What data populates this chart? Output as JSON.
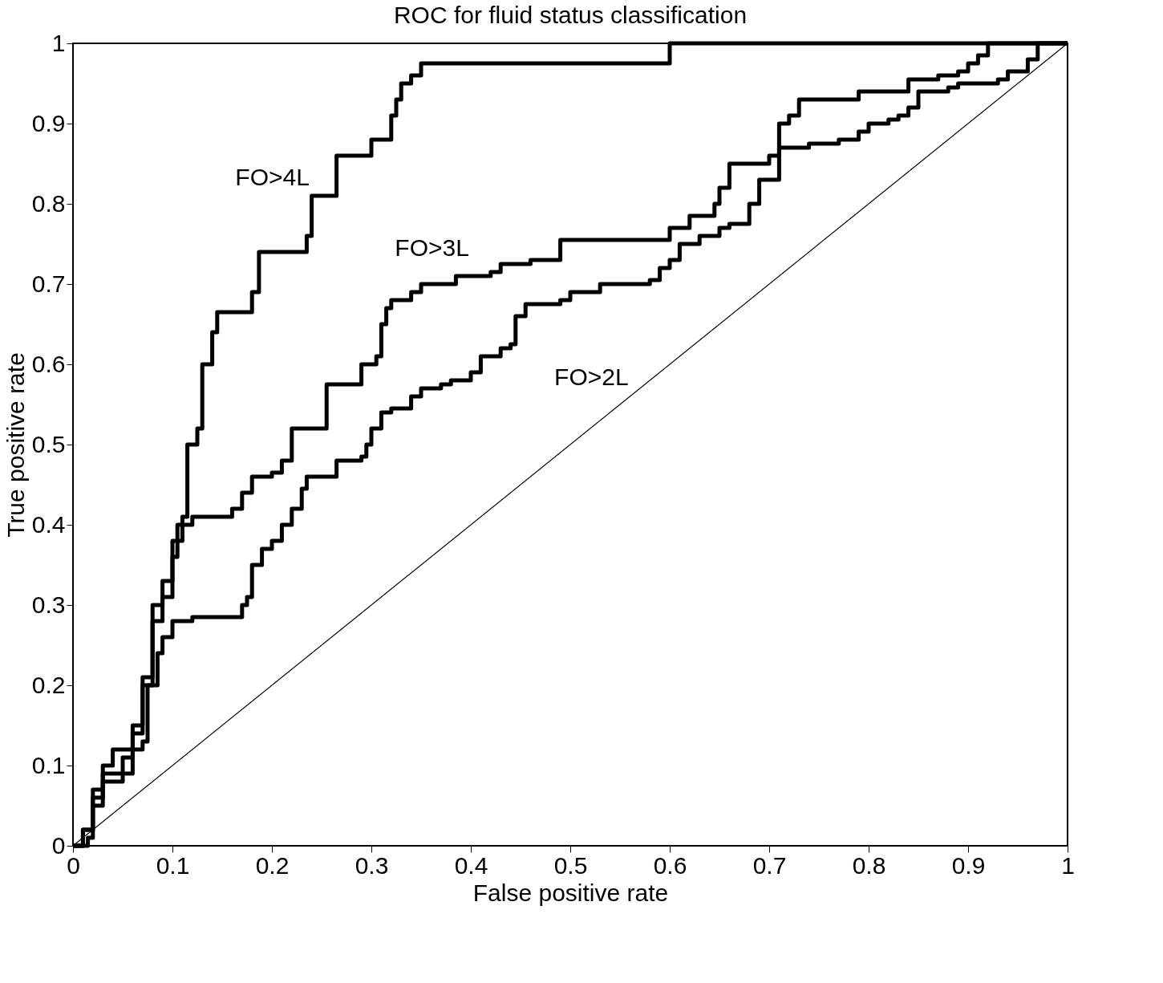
{
  "chart_data": {
    "type": "step",
    "title": "ROC for fluid status classification",
    "xlabel": "False positive rate",
    "ylabel": "True positive rate",
    "xlim": [
      0,
      1
    ],
    "ylim": [
      0,
      1
    ],
    "xticks": [
      0,
      0.1,
      0.2,
      0.3,
      0.4,
      0.5,
      0.6,
      0.7,
      0.8,
      0.9,
      1
    ],
    "yticks": [
      0,
      0.1,
      0.2,
      0.3,
      0.4,
      0.5,
      0.6,
      0.7,
      0.8,
      0.9,
      1
    ],
    "grid": false,
    "legend": false,
    "series": [
      {
        "name": "FO>4L",
        "color": "#000000",
        "x": [
          0,
          0.01,
          0.02,
          0.03,
          0.04,
          0.06,
          0.07,
          0.08,
          0.09,
          0.1,
          0.105,
          0.11,
          0.115,
          0.125,
          0.13,
          0.14,
          0.145,
          0.18,
          0.187,
          0.235,
          0.24,
          0.265,
          0.3,
          0.32,
          0.325,
          0.33,
          0.34,
          0.35,
          0.6,
          1
        ],
        "values": [
          0,
          0.02,
          0.07,
          0.1,
          0.12,
          0.14,
          0.2,
          0.28,
          0.31,
          0.36,
          0.4,
          0.41,
          0.5,
          0.52,
          0.6,
          0.64,
          0.665,
          0.69,
          0.74,
          0.76,
          0.81,
          0.86,
          0.88,
          0.91,
          0.93,
          0.95,
          0.96,
          0.975,
          1,
          1
        ]
      },
      {
        "name": "FO>3L",
        "color": "#000000",
        "x": [
          0,
          0.01,
          0.02,
          0.03,
          0.05,
          0.06,
          0.07,
          0.08,
          0.09,
          0.1,
          0.11,
          0.12,
          0.16,
          0.17,
          0.18,
          0.2,
          0.21,
          0.22,
          0.255,
          0.29,
          0.305,
          0.31,
          0.315,
          0.32,
          0.34,
          0.35,
          0.385,
          0.42,
          0.43,
          0.46,
          0.49,
          0.6,
          0.62,
          0.645,
          0.65,
          0.66,
          0.7,
          0.71,
          0.72,
          0.73,
          0.79,
          0.84,
          0.87,
          0.89,
          0.9,
          0.91,
          0.92,
          1
        ],
        "values": [
          0,
          0.02,
          0.06,
          0.09,
          0.11,
          0.15,
          0.21,
          0.3,
          0.33,
          0.38,
          0.4,
          0.41,
          0.42,
          0.44,
          0.46,
          0.465,
          0.48,
          0.52,
          0.575,
          0.6,
          0.61,
          0.65,
          0.67,
          0.68,
          0.69,
          0.7,
          0.71,
          0.715,
          0.725,
          0.73,
          0.755,
          0.77,
          0.785,
          0.8,
          0.82,
          0.85,
          0.86,
          0.9,
          0.91,
          0.93,
          0.94,
          0.955,
          0.96,
          0.965,
          0.975,
          0.985,
          1,
          1
        ]
      },
      {
        "name": "FO>2L",
        "color": "#000000",
        "x": [
          0,
          0.015,
          0.02,
          0.03,
          0.05,
          0.06,
          0.07,
          0.075,
          0.085,
          0.09,
          0.1,
          0.12,
          0.16,
          0.17,
          0.175,
          0.18,
          0.19,
          0.2,
          0.21,
          0.22,
          0.23,
          0.235,
          0.26,
          0.265,
          0.29,
          0.295,
          0.3,
          0.31,
          0.32,
          0.34,
          0.35,
          0.37,
          0.38,
          0.4,
          0.41,
          0.43,
          0.44,
          0.445,
          0.455,
          0.49,
          0.5,
          0.53,
          0.58,
          0.59,
          0.6,
          0.61,
          0.63,
          0.65,
          0.66,
          0.68,
          0.69,
          0.7,
          0.71,
          0.74,
          0.77,
          0.79,
          0.8,
          0.82,
          0.83,
          0.84,
          0.85,
          0.88,
          0.89,
          0.93,
          0.94,
          0.96,
          0.97,
          1
        ],
        "values": [
          0,
          0.01,
          0.05,
          0.08,
          0.09,
          0.12,
          0.13,
          0.2,
          0.24,
          0.26,
          0.28,
          0.285,
          0.285,
          0.3,
          0.31,
          0.35,
          0.37,
          0.38,
          0.4,
          0.42,
          0.445,
          0.46,
          0.46,
          0.48,
          0.485,
          0.5,
          0.52,
          0.54,
          0.545,
          0.56,
          0.57,
          0.575,
          0.58,
          0.59,
          0.61,
          0.62,
          0.625,
          0.66,
          0.675,
          0.68,
          0.69,
          0.7,
          0.705,
          0.72,
          0.73,
          0.75,
          0.76,
          0.77,
          0.775,
          0.8,
          0.83,
          0.83,
          0.87,
          0.875,
          0.88,
          0.89,
          0.9,
          0.905,
          0.91,
          0.92,
          0.94,
          0.945,
          0.95,
          0.955,
          0.965,
          0.98,
          1,
          1
        ]
      },
      {
        "type": "line",
        "color": "#000000",
        "x": [
          0,
          1
        ],
        "values": [
          0,
          1
        ]
      }
    ]
  }
}
